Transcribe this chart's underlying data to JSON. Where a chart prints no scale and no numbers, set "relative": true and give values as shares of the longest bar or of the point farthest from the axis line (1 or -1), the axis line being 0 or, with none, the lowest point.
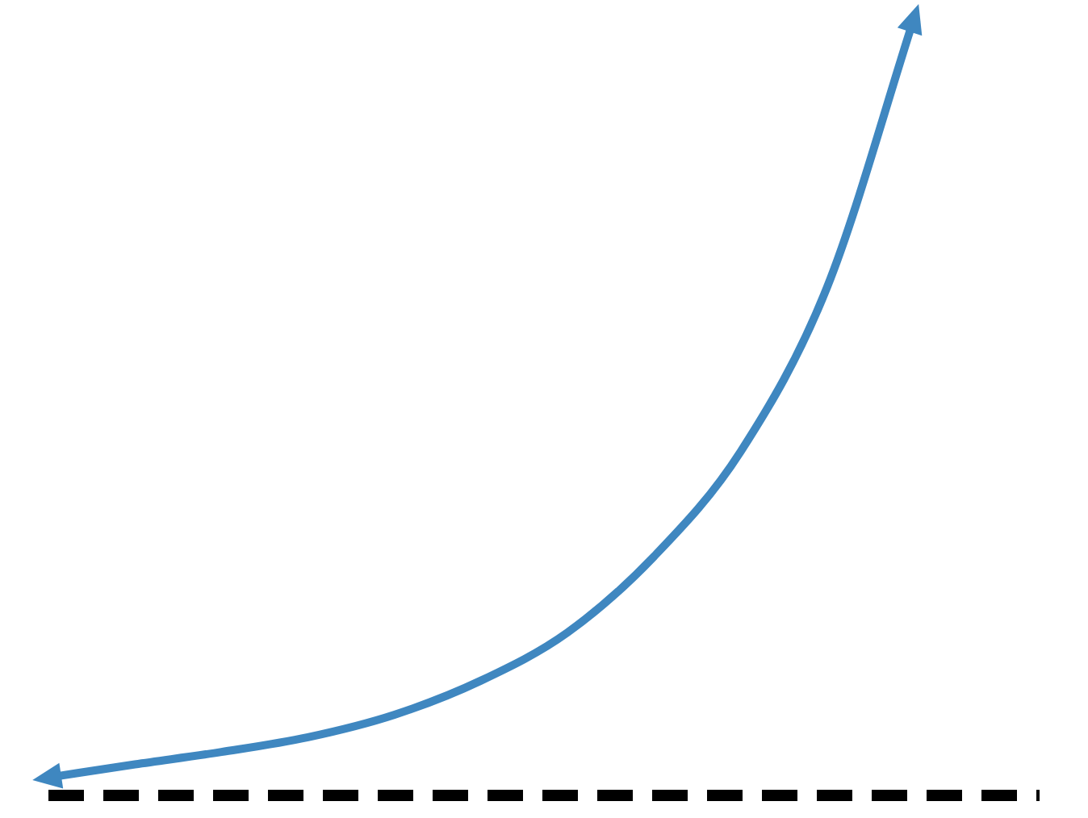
{
  "chart_data": {
    "type": "line",
    "relative": true,
    "categories": [
      null,
      null,
      null,
      null,
      null,
      null,
      null,
      null,
      null,
      null,
      null
    ],
    "values": [
      0.023,
      0.04,
      0.056,
      0.075,
      0.104,
      0.148,
      0.21,
      0.308,
      0.443,
      0.655,
      1
    ],
    "color": "#3f87c0",
    "marker": "none",
    "ref_lines": [
      {
        "axis": "y",
        "value": 0,
        "color": "#000000",
        "line_style": "dashed"
      }
    ]
  }
}
